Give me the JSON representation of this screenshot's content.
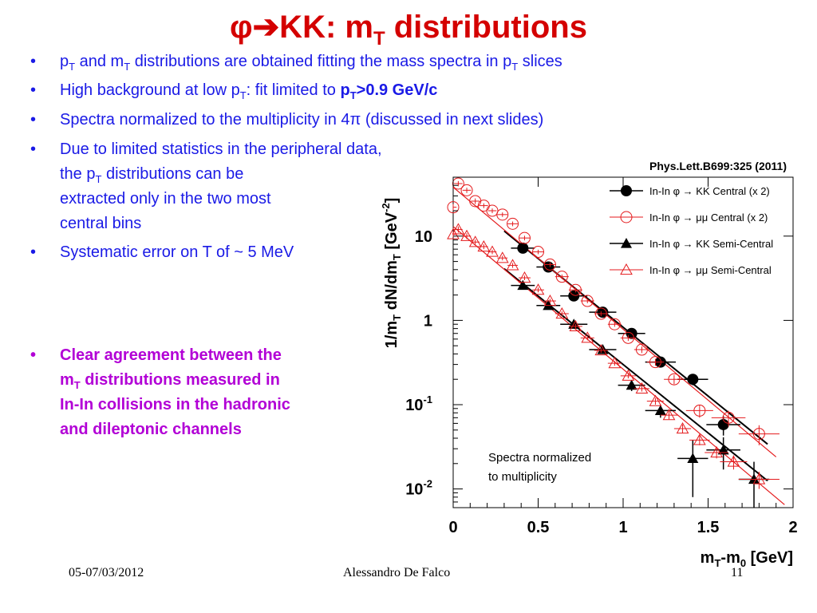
{
  "slide": {
    "title_pre": "φ➔KK: m",
    "title_sub": "T",
    "title_post": " distributions",
    "bullets": [
      {
        "parts": [
          "p",
          "T",
          " and m",
          "T",
          " distributions are obtained fitting the mass spectra in p",
          "T",
          " slices"
        ]
      },
      {
        "pre": "High background at low p",
        "sub": "T",
        "mid": ": fit limited to ",
        "bold_pre": "p",
        "bold_sub": "T",
        "bold_post": ">0.9 GeV/c"
      },
      {
        "text": "Spectra normalized to the multiplicity in 4π (discussed in next slides)"
      },
      {
        "line1": "Due to limited statistics in the peripheral data,",
        "line2_pre": "the p",
        "line2_sub": "T",
        "line2_post": " distributions can be",
        "line3": "extracted only in the two most",
        "line4": "central bins"
      },
      {
        "text": "Systematic error on T of ~ 5 MeV"
      },
      {
        "line1": "Clear agreement between the",
        "line2_pre": "m",
        "line2_sub": "T",
        "line2_post": " distributions measured in",
        "line3": "In-In collisions in the hadronic",
        "line4": "and dileptonic channels"
      }
    ],
    "footer": {
      "date": "05-07/03/2012",
      "author": "Alessandro De Falco",
      "page": "11"
    }
  },
  "chart_data": {
    "type": "scatter",
    "reference": "Phys.Lett.B699:325 (2011)",
    "xlabel_pre": "m",
    "xlabel_sub": "T",
    "xlabel_mid": "-m",
    "xlabel_sub2": "0",
    "xlabel_post": " [GeV]",
    "ylabel_pre": "1/m",
    "ylabel_sub": "T",
    "ylabel_mid": " dN/dm",
    "ylabel_sub2": "T",
    "ylabel_post": " [GeV",
    "ylabel_sup": "-2",
    "ylabel_end": "]",
    "xlim": [
      0,
      2
    ],
    "ylim": [
      0.006,
      50
    ],
    "yscale": "log",
    "x_ticks": [
      {
        "v": 0,
        "label": "0"
      },
      {
        "v": 0.5,
        "label": "0.5"
      },
      {
        "v": 1,
        "label": "1"
      },
      {
        "v": 1.5,
        "label": "1.5"
      },
      {
        "v": 2,
        "label": "2"
      }
    ],
    "y_ticks": [
      {
        "v": 10,
        "base": "10",
        "exp": ""
      },
      {
        "v": 1,
        "base": "1",
        "exp": ""
      },
      {
        "v": 0.1,
        "base": "10",
        "exp": "-1"
      },
      {
        "v": 0.01,
        "base": "10",
        "exp": "-2"
      }
    ],
    "annotation_line1": "Spectra normalized",
    "annotation_line2": "to multiplicity",
    "legend_position": "top-right",
    "series": [
      {
        "name": "In-In φ → KK Central (x 2)",
        "marker": "filled-circle",
        "color": "#000000",
        "x": [
          0.41,
          0.56,
          0.71,
          0.88,
          1.05,
          1.22,
          1.41,
          1.59
        ],
        "y": [
          7.2,
          4.3,
          1.95,
          1.25,
          0.7,
          0.32,
          0.2,
          0.058
        ],
        "xerr": [
          0.07,
          0.07,
          0.08,
          0.08,
          0.08,
          0.09,
          0.09,
          0.1
        ],
        "yerr": [
          0.5,
          0.3,
          0.15,
          0.1,
          0.06,
          0.04,
          0.03,
          0.015
        ],
        "fit": [
          [
            0.3,
            11.5
          ],
          [
            1.85,
            0.034
          ]
        ]
      },
      {
        "name": "In-In φ → μμ Central (x 2)",
        "marker": "open-circle",
        "color": "#e41a1c",
        "x": [
          0.0,
          0.03,
          0.08,
          0.13,
          0.18,
          0.23,
          0.29,
          0.35,
          0.42,
          0.5,
          0.57,
          0.64,
          0.72,
          0.79,
          0.87,
          0.95,
          1.03,
          1.11,
          1.19,
          1.3,
          1.45,
          1.62,
          1.8
        ],
        "y": [
          22,
          42,
          35,
          26,
          23,
          20,
          18,
          14,
          9.5,
          6.5,
          4.6,
          3.3,
          2.3,
          1.7,
          1.2,
          0.9,
          0.62,
          0.45,
          0.32,
          0.2,
          0.085,
          0.07,
          0.045
        ],
        "xerr": [
          0.02,
          0.025,
          0.025,
          0.025,
          0.025,
          0.025,
          0.03,
          0.03,
          0.035,
          0.035,
          0.035,
          0.04,
          0.04,
          0.04,
          0.04,
          0.04,
          0.045,
          0.045,
          0.05,
          0.06,
          0.08,
          0.1,
          0.12
        ],
        "yerr": [
          2,
          3,
          2.5,
          2,
          1.5,
          1.3,
          1.1,
          0.9,
          0.6,
          0.4,
          0.3,
          0.2,
          0.15,
          0.1,
          0.08,
          0.06,
          0.05,
          0.04,
          0.03,
          0.025,
          0.015,
          0.015,
          0.012
        ],
        "fit": [
          [
            0.0,
            38
          ],
          [
            1.9,
            0.024
          ]
        ]
      },
      {
        "name": "In-In φ → KK Semi-Central",
        "marker": "filled-triangle",
        "color": "#000000",
        "x": [
          0.41,
          0.56,
          0.71,
          0.88,
          1.05,
          1.22,
          1.41,
          1.59,
          1.77
        ],
        "y": [
          2.6,
          1.5,
          0.9,
          0.45,
          0.17,
          0.085,
          0.023,
          0.029,
          0.013
        ],
        "xerr": [
          0.07,
          0.07,
          0.08,
          0.08,
          0.08,
          0.09,
          0.09,
          0.1,
          0.09
        ],
        "yerr": [
          0.2,
          0.12,
          0.08,
          0.05,
          0.025,
          0.015,
          0.015,
          0.012,
          0.008
        ],
        "fit": [
          [
            0.3,
            4.1
          ],
          [
            1.85,
            0.0125
          ]
        ]
      },
      {
        "name": "In-In φ → μμ Semi-Central",
        "marker": "open-triangle",
        "color": "#e41a1c",
        "x": [
          0.0,
          0.03,
          0.08,
          0.13,
          0.18,
          0.23,
          0.29,
          0.35,
          0.42,
          0.5,
          0.57,
          0.64,
          0.72,
          0.79,
          0.87,
          0.95,
          1.03,
          1.11,
          1.19,
          1.27,
          1.35,
          1.45,
          1.55,
          1.65,
          1.8
        ],
        "y": [
          10.5,
          12,
          10,
          8.5,
          7.5,
          6.5,
          5.5,
          4.5,
          3.2,
          2.3,
          1.7,
          1.2,
          0.85,
          0.62,
          0.44,
          0.31,
          0.22,
          0.155,
          0.11,
          0.075,
          0.052,
          0.038,
          0.027,
          0.021,
          0.013
        ],
        "xerr": [
          0.02,
          0.025,
          0.025,
          0.025,
          0.025,
          0.025,
          0.03,
          0.03,
          0.035,
          0.035,
          0.035,
          0.04,
          0.04,
          0.04,
          0.04,
          0.04,
          0.045,
          0.045,
          0.05,
          0.05,
          0.05,
          0.06,
          0.07,
          0.08,
          0.12
        ],
        "yerr": [
          0.8,
          1,
          0.8,
          0.6,
          0.5,
          0.4,
          0.35,
          0.3,
          0.2,
          0.15,
          0.1,
          0.08,
          0.06,
          0.04,
          0.03,
          0.02,
          0.015,
          0.012,
          0.01,
          0.008,
          0.006,
          0.005,
          0.004,
          0.004,
          0.003
        ],
        "fit": [
          [
            0.0,
            13
          ],
          [
            1.95,
            0.0065
          ]
        ]
      }
    ]
  }
}
